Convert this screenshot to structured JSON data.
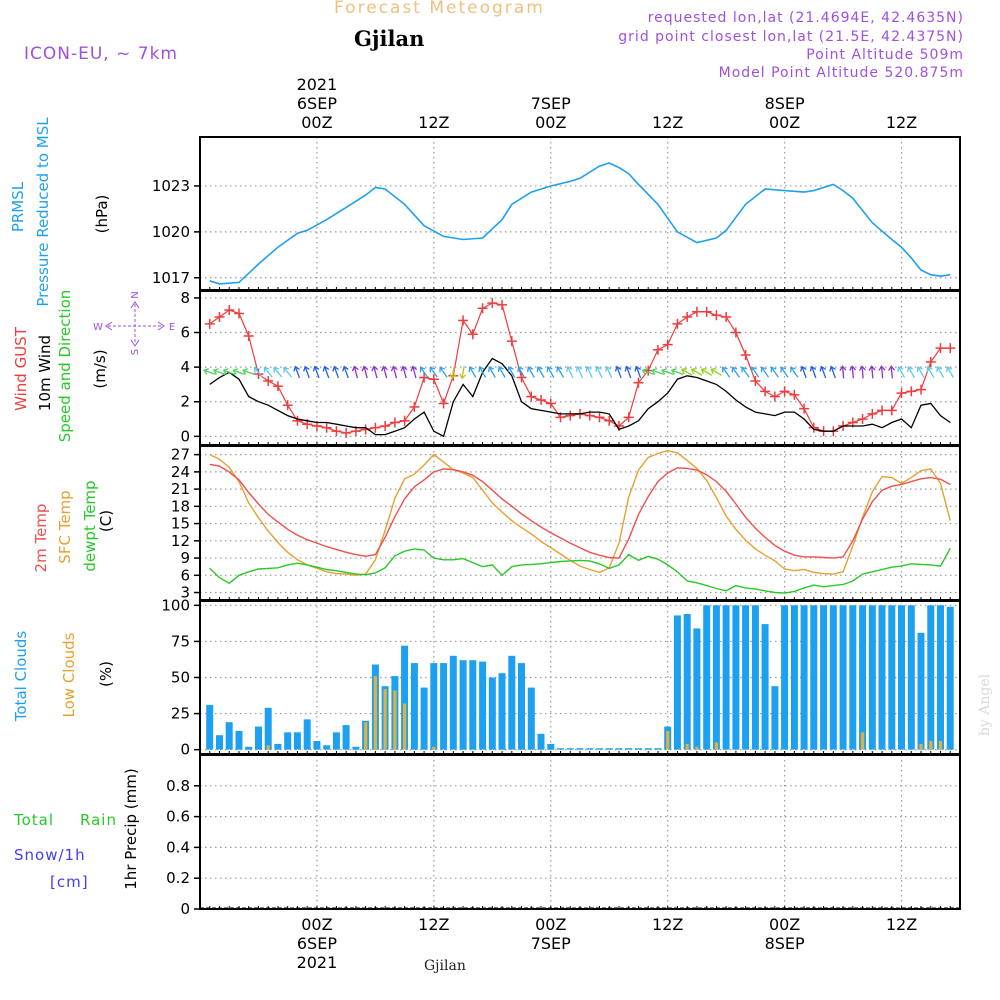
{
  "header": {
    "product_title": "Forecast Meteogram",
    "location": "Gjilan",
    "model": "ICON-EU, ~ 7km",
    "requested": "requested lon,lat (21.4694E, 42.4635N)",
    "gridpoint": "grid point closest lon,lat (21.5E, 42.4375N)",
    "point_altitude": "Point Altitude 509m",
    "model_altitude": "Model Point Altitude 520.875m",
    "footer_location": "Gjilan",
    "watermark": "by Angel"
  },
  "colors": {
    "pressure": "#1ea0f0",
    "gust": "#f03c3c",
    "wind10m": "#000000",
    "temp2m": "#f05050",
    "sfc_temp": "#e8a030",
    "dewpoint": "#28c828",
    "total_clouds": "#1ea0f0",
    "low_clouds": "#e0b040",
    "rain": "#28c828",
    "snow": "#4040f0",
    "header_purple": "#a050e0",
    "product_title": "#f0c080"
  },
  "time_axis": {
    "top_labels": [
      {
        "hour": 24,
        "lines": [
          "2021",
          "6SEP",
          "00Z"
        ]
      },
      {
        "hour": 36,
        "lines": [
          "12Z"
        ]
      },
      {
        "hour": 48,
        "lines": [
          "7SEP",
          "00Z"
        ]
      },
      {
        "hour": 60,
        "lines": [
          "12Z"
        ]
      },
      {
        "hour": 72,
        "lines": [
          "8SEP",
          "00Z"
        ]
      },
      {
        "hour": 84,
        "lines": [
          "12Z"
        ]
      }
    ],
    "bottom_labels": [
      {
        "hour": 24,
        "lines": [
          "00Z",
          "6SEP",
          "2021"
        ]
      },
      {
        "hour": 36,
        "lines": [
          "12Z"
        ]
      },
      {
        "hour": 48,
        "lines": [
          "00Z",
          "7SEP"
        ]
      },
      {
        "hour": 60,
        "lines": [
          "12Z"
        ]
      },
      {
        "hour": 72,
        "lines": [
          "00Z",
          "8SEP"
        ]
      },
      {
        "hour": 84,
        "lines": [
          "12Z"
        ]
      }
    ]
  },
  "panels": {
    "pressure": {
      "labels": [
        "PRMSL",
        "Pressure Reduced to MSL"
      ],
      "unit": "(hPa)"
    },
    "wind": {
      "labels": [
        "Wind GUST",
        "10m Wind",
        "Speed and Direction"
      ],
      "unit": "(m/s)",
      "compass": [
        "N",
        "S",
        "W",
        "E"
      ]
    },
    "temp": {
      "labels": [
        "2m Temp",
        "SFC Temp",
        "dewpt Temp"
      ],
      "unit": "(C)"
    },
    "clouds": {
      "labels": [
        "Total Clouds",
        "Low Clouds"
      ],
      "unit": "(%)"
    },
    "precip": {
      "labels": [
        "Total",
        "Rain",
        "Snow/1h",
        "[cm]"
      ],
      "unit": "1hr Precip (mm)"
    }
  },
  "chart_data": [
    {
      "type": "line",
      "name": "PRMSL",
      "ylabel": "Pressure Reduced to MSL (hPa)",
      "yticks": [
        1017,
        1020,
        1023
      ],
      "ylim": [
        1016.2,
        1026.2
      ],
      "x_hours": [
        13,
        14,
        16,
        18,
        20,
        22,
        23,
        25,
        27,
        29,
        30,
        31,
        33,
        35,
        37,
        39,
        41,
        43,
        44,
        46,
        48,
        50,
        51,
        53,
        54,
        55,
        56,
        57,
        59,
        61,
        63,
        65,
        66,
        68,
        70,
        72,
        74,
        75,
        76,
        77,
        78,
        79,
        81,
        83,
        84,
        85,
        86,
        87,
        88,
        89
      ],
      "values": [
        1016.8,
        1016.6,
        1016.7,
        1017.9,
        1019.0,
        1019.9,
        1020.1,
        1020.8,
        1021.6,
        1022.4,
        1022.9,
        1022.8,
        1021.8,
        1020.4,
        1019.7,
        1019.5,
        1019.6,
        1020.8,
        1021.8,
        1022.6,
        1023.0,
        1023.3,
        1023.5,
        1024.3,
        1024.5,
        1024.2,
        1023.8,
        1023.1,
        1021.8,
        1020.0,
        1019.3,
        1019.6,
        1020.1,
        1021.8,
        1022.8,
        1022.7,
        1022.6,
        1022.7,
        1022.9,
        1023.1,
        1022.7,
        1022.2,
        1020.6,
        1019.5,
        1019.0,
        1018.3,
        1017.5,
        1017.2,
        1017.1,
        1017.2
      ]
    },
    {
      "type": "line",
      "name": "Wind",
      "ylabel": "Speed and Direction (m/s)",
      "yticks": [
        0,
        2,
        4,
        6,
        8
      ],
      "ylim": [
        -0.5,
        8.4
      ],
      "x_hours": [
        13,
        14,
        15,
        16,
        17,
        18,
        19,
        20,
        21,
        22,
        23,
        24,
        25,
        26,
        27,
        28,
        29,
        30,
        31,
        32,
        33,
        34,
        35,
        36,
        37,
        38,
        39,
        40,
        41,
        42,
        43,
        44,
        45,
        46,
        47,
        48,
        49,
        50,
        51,
        52,
        53,
        54,
        55,
        56,
        57,
        58,
        59,
        60,
        61,
        62,
        63,
        64,
        65,
        66,
        67,
        68,
        69,
        70,
        71,
        72,
        73,
        74,
        75,
        76,
        77,
        78,
        79,
        80,
        81,
        82,
        83,
        84,
        85,
        86,
        87,
        88,
        89
      ],
      "series": [
        {
          "name": "Wind GUST",
          "values": [
            6.5,
            6.9,
            7.3,
            7.1,
            5.8,
            3.6,
            3.2,
            2.9,
            1.8,
            0.9,
            0.7,
            0.6,
            0.5,
            0.3,
            0.2,
            0.3,
            0.4,
            0.5,
            0.6,
            0.8,
            0.9,
            1.7,
            3.4,
            3.3,
            1.9,
            3.5,
            6.7,
            5.9,
            7.4,
            7.7,
            7.6,
            5.5,
            3.4,
            2.3,
            2.1,
            1.9,
            1.1,
            1.2,
            1.3,
            1.2,
            1.1,
            0.9,
            0.6,
            1.1,
            3.1,
            3.8,
            5.0,
            5.3,
            6.5,
            6.9,
            7.2,
            7.2,
            7.0,
            6.9,
            6.0,
            4.7,
            3.2,
            2.6,
            2.3,
            2.6,
            2.4,
            1.6,
            0.5,
            0.3,
            0.3,
            0.6,
            0.8,
            1.0,
            1.3,
            1.5,
            1.5,
            2.5,
            2.6,
            2.7,
            4.3,
            5.1,
            5.1
          ]
        },
        {
          "name": "10m Wind",
          "values": [
            3.0,
            3.4,
            3.7,
            3.3,
            2.3,
            2.0,
            1.8,
            1.5,
            1.2,
            1.0,
            0.9,
            0.8,
            0.8,
            0.7,
            0.6,
            0.5,
            0.5,
            0.1,
            0.1,
            0.3,
            0.5,
            1.0,
            1.4,
            0.3,
            0.0,
            2.0,
            3.0,
            2.3,
            3.7,
            4.5,
            4.2,
            3.5,
            2.0,
            1.6,
            1.5,
            1.4,
            1.3,
            1.3,
            1.3,
            1.4,
            1.4,
            1.3,
            0.4,
            0.6,
            0.9,
            1.6,
            2.0,
            2.5,
            3.3,
            3.5,
            3.4,
            3.2,
            3.0,
            2.6,
            2.1,
            1.7,
            1.4,
            1.3,
            1.2,
            1.4,
            1.4,
            1.0,
            0.4,
            0.3,
            0.3,
            0.6,
            0.6,
            0.6,
            0.7,
            0.5,
            0.8,
            1.0,
            0.5,
            1.8,
            1.9,
            1.2,
            0.8
          ]
        }
      ]
    },
    {
      "type": "line",
      "name": "Temperature",
      "ylabel": "(C)",
      "yticks": [
        3,
        6,
        9,
        12,
        15,
        18,
        21,
        24,
        27
      ],
      "ylim": [
        1.7,
        28.5
      ],
      "x_hours": [
        13,
        14,
        15,
        16,
        17,
        18,
        19,
        20,
        21,
        22,
        23,
        24,
        25,
        26,
        27,
        28,
        29,
        30,
        31,
        32,
        33,
        34,
        35,
        36,
        37,
        38,
        39,
        40,
        41,
        42,
        43,
        44,
        45,
        46,
        47,
        48,
        49,
        50,
        51,
        52,
        53,
        54,
        55,
        56,
        57,
        58,
        59,
        60,
        61,
        62,
        63,
        64,
        65,
        66,
        67,
        68,
        69,
        70,
        71,
        72,
        73,
        74,
        75,
        76,
        77,
        78,
        79,
        80,
        81,
        82,
        83,
        84,
        85,
        86,
        87,
        88,
        89
      ],
      "series": [
        {
          "name": "2m Temp",
          "values": [
            25.3,
            25.0,
            24.0,
            22.6,
            20.4,
            18.4,
            16.6,
            15.3,
            14.0,
            13.0,
            12.2,
            11.6,
            11.0,
            10.5,
            10.0,
            9.6,
            9.3,
            9.6,
            12.6,
            16.2,
            19.3,
            21.4,
            22.6,
            24.0,
            24.5,
            24.4,
            24.0,
            23.4,
            22.3,
            20.8,
            19.3,
            18.0,
            16.7,
            15.5,
            14.4,
            13.4,
            12.5,
            11.6,
            10.8,
            10.0,
            9.5,
            9.1,
            9.0,
            12.3,
            16.6,
            19.7,
            22.3,
            23.8,
            24.7,
            24.6,
            24.3,
            23.5,
            22.3,
            20.6,
            18.4,
            16.1,
            14.2,
            12.6,
            11.2,
            10.2,
            9.5,
            9.2,
            9.2,
            9.1,
            9.0,
            9.2,
            12.0,
            15.8,
            18.8,
            20.8,
            21.5,
            21.8,
            22.3,
            22.8,
            23.0,
            22.7,
            21.8
          ]
        },
        {
          "name": "SFC Temp",
          "values": [
            27.0,
            26.2,
            24.8,
            22.3,
            18.6,
            16.0,
            13.7,
            11.7,
            10.0,
            8.7,
            7.8,
            7.2,
            6.6,
            6.3,
            6.2,
            6.0,
            6.2,
            8.7,
            13.8,
            19.4,
            22.8,
            23.6,
            25.2,
            27.0,
            25.7,
            24.4,
            23.8,
            23.0,
            20.8,
            18.6,
            17.0,
            15.5,
            14.3,
            13.2,
            11.9,
            10.8,
            9.7,
            8.6,
            7.6,
            7.0,
            6.5,
            7.3,
            11.6,
            19.6,
            24.3,
            26.5,
            27.2,
            27.7,
            27.3,
            26.0,
            24.6,
            22.5,
            19.5,
            16.3,
            14.0,
            12.1,
            10.6,
            9.5,
            8.5,
            7.1,
            6.8,
            7.0,
            6.5,
            6.3,
            6.2,
            6.6,
            11.1,
            16.1,
            20.5,
            23.2,
            23.0,
            22.0,
            23.0,
            24.2,
            24.5,
            22.0,
            15.5
          ]
        },
        {
          "name": "dewpt Temp",
          "values": [
            7.2,
            5.6,
            4.6,
            6.0,
            6.6,
            7.1,
            7.2,
            7.3,
            7.8,
            8.1,
            7.8,
            7.4,
            7.0,
            6.8,
            6.5,
            6.2,
            6.1,
            6.4,
            7.3,
            9.4,
            10.2,
            10.6,
            10.4,
            9.0,
            8.7,
            8.7,
            8.9,
            8.2,
            7.5,
            7.8,
            6.0,
            7.5,
            7.8,
            7.9,
            8.0,
            8.2,
            8.4,
            8.5,
            8.6,
            8.5,
            8.0,
            7.2,
            7.8,
            9.6,
            8.6,
            9.3,
            8.8,
            7.8,
            6.6,
            5.0,
            4.7,
            4.2,
            3.7,
            3.3,
            4.2,
            3.8,
            3.6,
            3.3,
            3.0,
            2.9,
            3.2,
            3.8,
            4.3,
            4.0,
            4.2,
            4.4,
            5.0,
            6.2,
            6.6,
            7.0,
            7.4,
            7.6,
            8.0,
            7.9,
            7.8,
            7.6,
            10.7
          ]
        }
      ]
    },
    {
      "type": "bar",
      "name": "Clouds",
      "ylabel": "(%)",
      "yticks": [
        0,
        25,
        50,
        75,
        100
      ],
      "ylim": [
        -3,
        103
      ],
      "x_hours": [
        13,
        14,
        15,
        16,
        17,
        18,
        19,
        20,
        21,
        22,
        23,
        24,
        25,
        26,
        27,
        28,
        29,
        30,
        31,
        32,
        33,
        34,
        35,
        36,
        37,
        38,
        39,
        40,
        41,
        42,
        43,
        44,
        45,
        46,
        47,
        48,
        49,
        50,
        51,
        52,
        53,
        54,
        55,
        56,
        57,
        58,
        59,
        60,
        61,
        62,
        63,
        64,
        65,
        66,
        67,
        68,
        69,
        70,
        71,
        72,
        73,
        74,
        75,
        76,
        77,
        78,
        79,
        80,
        81,
        82,
        83,
        84,
        85,
        86,
        87,
        88,
        89
      ],
      "series": [
        {
          "name": "Total Clouds",
          "values": [
            31,
            10,
            19,
            13,
            2,
            16,
            29,
            4,
            12,
            12,
            21,
            6,
            3,
            12,
            17,
            2,
            20,
            59,
            44,
            51,
            72,
            60,
            43,
            60,
            60,
            65,
            62,
            62,
            61,
            50,
            53,
            65,
            60,
            43,
            11,
            4,
            1,
            1,
            1,
            1,
            1,
            1,
            1,
            1,
            1,
            1,
            1,
            16,
            93,
            94,
            84,
            100,
            100,
            100,
            100,
            100,
            100,
            87,
            44,
            100,
            100,
            100,
            100,
            100,
            100,
            100,
            100,
            100,
            100,
            100,
            100,
            100,
            100,
            81,
            100,
            100,
            99
          ]
        },
        {
          "name": "Low Clouds",
          "values": [
            0,
            0,
            0,
            0,
            0,
            0,
            3,
            0,
            0,
            0,
            0,
            0,
            0,
            0,
            0,
            0,
            19,
            51,
            42,
            41,
            32,
            0,
            0,
            2,
            0,
            0,
            0,
            0,
            0,
            0,
            0,
            0,
            0,
            0,
            0,
            0,
            0,
            0,
            0,
            0,
            0,
            0,
            0,
            0,
            0,
            0,
            0,
            13,
            0,
            4,
            2,
            0,
            5,
            0,
            0,
            0,
            0,
            0,
            0,
            0,
            0,
            0,
            0,
            0,
            0,
            0,
            0,
            12,
            0,
            0,
            0,
            0,
            0,
            4,
            6,
            6,
            0
          ]
        }
      ]
    },
    {
      "type": "bar",
      "name": "Precipitation",
      "ylabel": "1hr Precip (mm)",
      "yticks": [
        0,
        0.2,
        0.4,
        0.6,
        0.8
      ],
      "ylim": [
        0,
        1.0
      ],
      "series": [
        {
          "name": "Total",
          "values": []
        },
        {
          "name": "Snow/1h",
          "values": []
        }
      ]
    }
  ]
}
